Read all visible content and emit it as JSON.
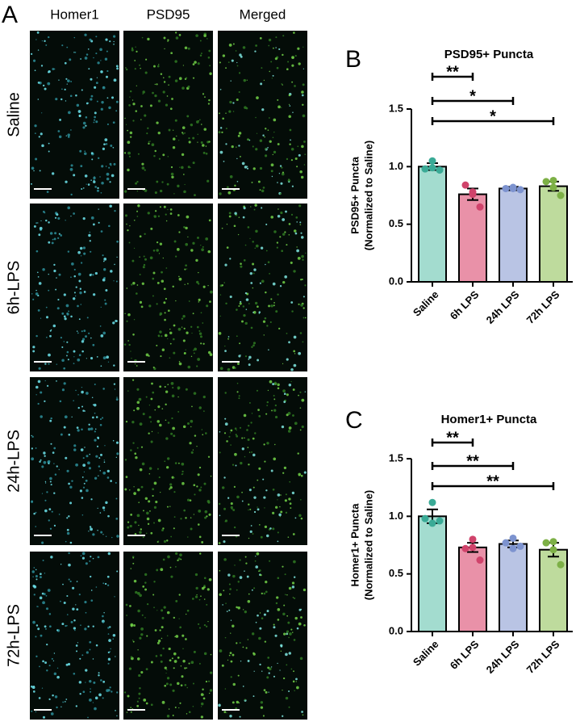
{
  "panel_a": {
    "panel_label": "A",
    "columns": [
      "Homer1",
      "PSD95",
      "Merged"
    ],
    "rows": [
      "Saline",
      "6h-LPS",
      "24h-LPS",
      "72h-LPS"
    ]
  },
  "chart_data": [
    {
      "type": "bar",
      "panel_label": "B",
      "title": "PSD95+ Puncta",
      "ylabel": [
        "PSD95+ Puncta",
        "(Normalized to Saline)"
      ],
      "categories": [
        "Saline",
        "6h LPS",
        "24h LPS",
        "72h LPS"
      ],
      "values": [
        1.0,
        0.76,
        0.81,
        0.83
      ],
      "errors": [
        0.03,
        0.05,
        0.015,
        0.04
      ],
      "points": [
        [
          1.05,
          0.98,
          0.97,
          0.99
        ],
        [
          0.78,
          0.84,
          0.65,
          0.76
        ],
        [
          0.81,
          0.81,
          0.8,
          0.82
        ],
        [
          0.88,
          0.87,
          0.75,
          0.82
        ]
      ],
      "colors": [
        "#a3dccf",
        "#e991a8",
        "#b9c4e4",
        "#bedb9d"
      ],
      "point_colors": [
        "#3aaa96",
        "#d0436b",
        "#7d93cf",
        "#7db046"
      ],
      "ylim": [
        0,
        1.5
      ],
      "yticks": [
        {
          "value": 0,
          "label": "0.0"
        },
        {
          "value": 0.5,
          "label": "0.5"
        },
        {
          "value": 1,
          "label": "1.0"
        },
        {
          "value": 1.5,
          "label": "1.5"
        }
      ],
      "significance": [
        {
          "pair": [
            "Saline",
            "6h LPS"
          ],
          "label": "**"
        },
        {
          "pair": [
            "Saline",
            "24h LPS"
          ],
          "label": "*"
        },
        {
          "pair": [
            "Saline",
            "72h LPS"
          ],
          "label": "*"
        }
      ]
    },
    {
      "type": "bar",
      "panel_label": "C",
      "title": "Homer1+ Puncta",
      "ylabel": [
        "Homer1+ Puncta",
        "(Normalized to Saline)"
      ],
      "categories": [
        "Saline",
        "6h LPS",
        "24h LPS",
        "72h LPS"
      ],
      "values": [
        1.0,
        0.73,
        0.76,
        0.71
      ],
      "errors": [
        0.06,
        0.04,
        0.03,
        0.06
      ],
      "points": [
        [
          1.12,
          0.98,
          0.96,
          0.94
        ],
        [
          0.8,
          0.72,
          0.62,
          0.73
        ],
        [
          0.81,
          0.77,
          0.74,
          0.72
        ],
        [
          0.78,
          0.77,
          0.58,
          0.71
        ]
      ],
      "colors": [
        "#a3dccf",
        "#e991a8",
        "#b9c4e4",
        "#bedb9d"
      ],
      "point_colors": [
        "#3aaa96",
        "#d0436b",
        "#7d93cf",
        "#7db046"
      ],
      "ylim": [
        0,
        1.5
      ],
      "yticks": [
        {
          "value": 0,
          "label": "0.0"
        },
        {
          "value": 0.5,
          "label": "0.5"
        },
        {
          "value": 1,
          "label": "1.0"
        },
        {
          "value": 1.5,
          "label": "1.5"
        }
      ],
      "significance": [
        {
          "pair": [
            "Saline",
            "6h LPS"
          ],
          "label": "**"
        },
        {
          "pair": [
            "Saline",
            "24h LPS"
          ],
          "label": "**"
        },
        {
          "pair": [
            "Saline",
            "72h LPS"
          ],
          "label": "**"
        }
      ]
    }
  ]
}
